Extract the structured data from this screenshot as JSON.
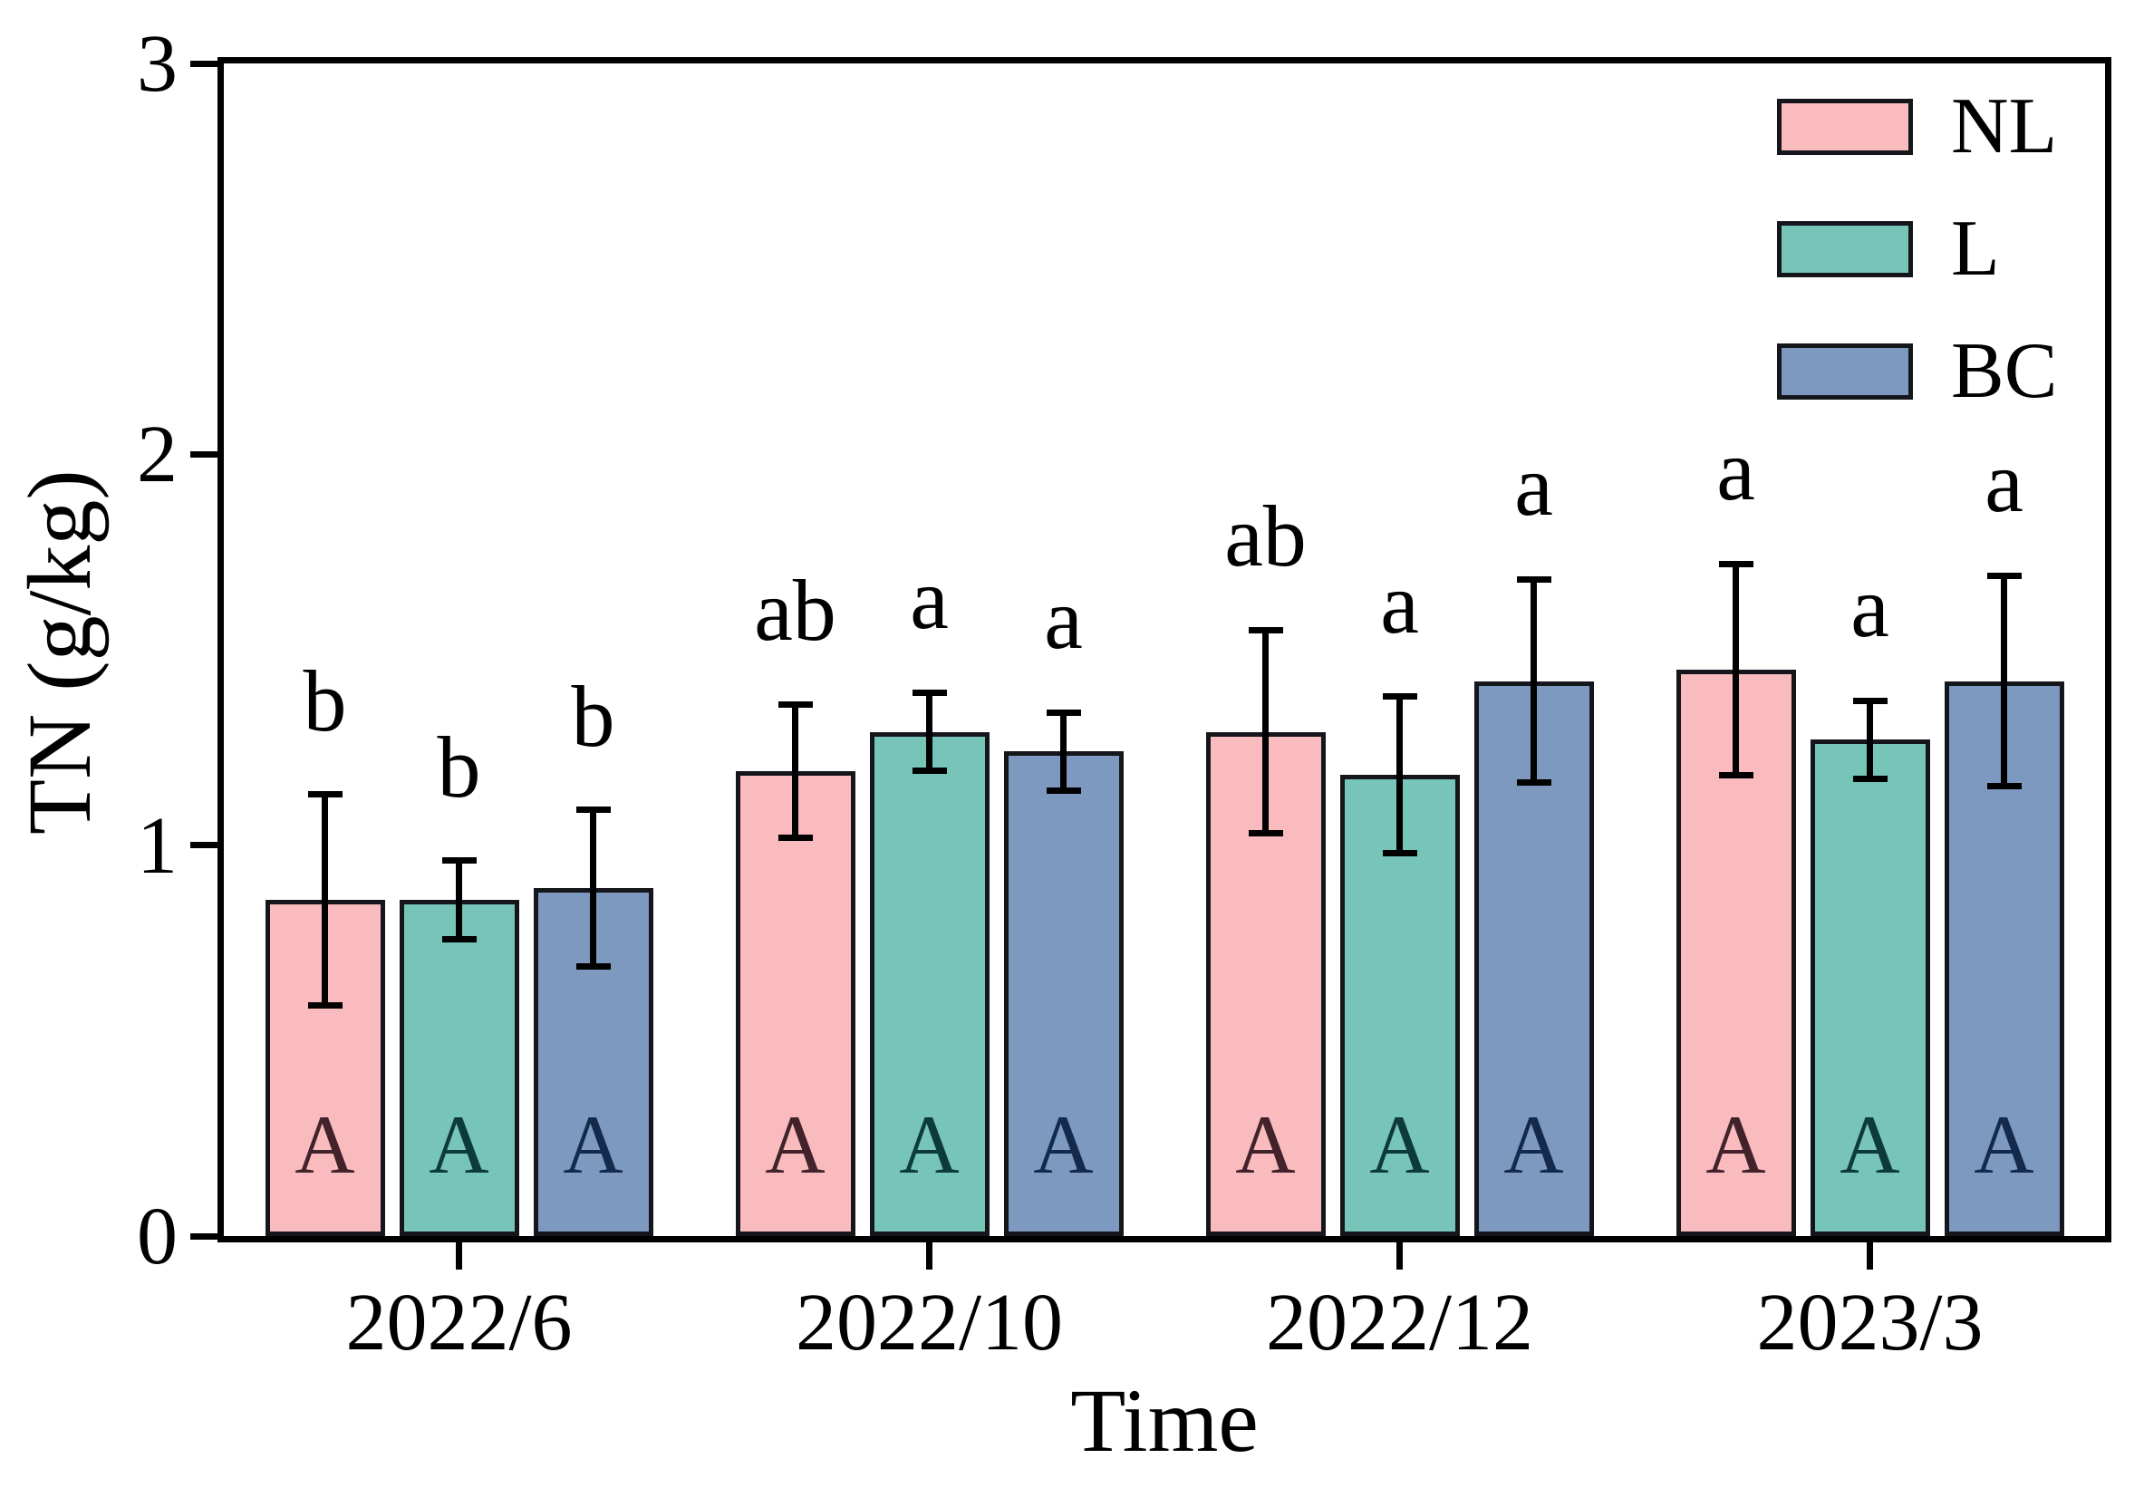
{
  "chart_data": {
    "type": "bar",
    "title": "",
    "xlabel": "Time",
    "ylabel": "TN (g/kg)",
    "ylim": [
      0,
      3
    ],
    "yticks": [
      "0",
      "1",
      "2",
      "3"
    ],
    "categories": [
      "2022/6",
      "2022/10",
      "2022/12",
      "2023/3"
    ],
    "grid": false,
    "legend_position": "upper right",
    "axis_color": "#000000",
    "error_bar_color": "#000000",
    "series": [
      {
        "name": "NL",
        "color": "#f9bbbe",
        "inside_letter_color": "#42222b",
        "values": [
          0.86,
          1.19,
          1.29,
          1.45
        ],
        "errors": [
          0.27,
          0.17,
          0.26,
          0.27
        ],
        "letters_above": [
          "b",
          "ab",
          "ab",
          "a"
        ],
        "letters_inside": [
          "A",
          "A",
          "A",
          "A"
        ]
      },
      {
        "name": "L",
        "color": "#77c4b9",
        "inside_letter_color": "#0d3a3a",
        "values": [
          0.86,
          1.29,
          1.18,
          1.27
        ],
        "errors": [
          0.1,
          0.1,
          0.2,
          0.1
        ],
        "letters_above": [
          "b",
          "a",
          "a",
          "a"
        ],
        "letters_inside": [
          "A",
          "A",
          "A",
          "A"
        ]
      },
      {
        "name": "BC",
        "color": "#7d99bf",
        "inside_letter_color": "#142a4d",
        "values": [
          0.89,
          1.24,
          1.42,
          1.42
        ],
        "errors": [
          0.2,
          0.1,
          0.26,
          0.27
        ],
        "letters_above": [
          "b",
          "a",
          "a",
          "a"
        ],
        "letters_inside": [
          "A",
          "A",
          "A",
          "A"
        ]
      }
    ]
  }
}
